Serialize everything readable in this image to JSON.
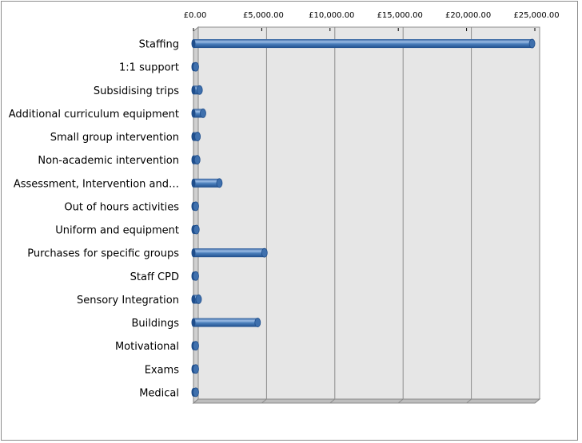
{
  "chart_data": {
    "type": "bar",
    "orientation": "horizontal",
    "style": "3d-cylinder",
    "categories": [
      "Staffing",
      "1:1 support",
      "Subsidising trips",
      "Additional curriculum equipment",
      "Small group intervention",
      "Non-academic intervention",
      "Assessment, Intervention and…",
      "Out of hours activities",
      "Uniform and equipment",
      "Purchases for specific groups",
      "Staff CPD",
      "Sensory Integration",
      "Buildings",
      "Motivational",
      "Exams",
      "Medical"
    ],
    "values": [
      24800,
      60,
      450,
      700,
      300,
      280,
      1900,
      120,
      220,
      5200,
      40,
      380,
      4700,
      30,
      60,
      150
    ],
    "xlim": [
      0,
      25000
    ],
    "xticks": [
      0,
      5000,
      10000,
      15000,
      20000,
      25000
    ],
    "xtick_labels": [
      "£0.00",
      "£5,000.00",
      "£10,000.00",
      "£15,000.00",
      "£20,000.00",
      "£25,000.00"
    ],
    "title": "",
    "xlabel": "",
    "ylabel": "",
    "grid": "vertical",
    "legend": "none",
    "colors": {
      "bar_main": "#4a7ebb",
      "bar_light": "#9cbde6",
      "bar_dark": "#1f4e8c",
      "plot_back": "#e6e6e6",
      "plot_side": "#d0d0d0",
      "grid": "#8c8c8c"
    }
  }
}
